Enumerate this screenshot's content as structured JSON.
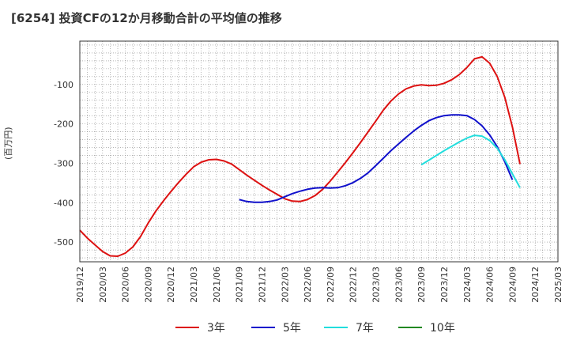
{
  "title": "[6254]  投資CFの12か月移動合計の平均値の推移",
  "unit_label": "(百万円)",
  "chart_data": {
    "type": "line",
    "x": [
      "2019/12",
      "2020/03",
      "2020/06",
      "2020/09",
      "2020/12",
      "2021/03",
      "2021/06",
      "2021/09",
      "2021/12",
      "2022/03",
      "2022/06",
      "2022/09",
      "2022/12",
      "2023/03",
      "2023/06",
      "2023/09",
      "2023/12",
      "2024/03",
      "2024/06",
      "2024/09",
      "2024/12",
      "2025/03"
    ],
    "y_ticks": [
      -500,
      -400,
      -300,
      -200,
      -100
    ],
    "ylim": [
      -550,
      10
    ],
    "grid": true,
    "legend_position": "bottom",
    "series": [
      {
        "name": "3年",
        "color": "#dd1111",
        "points": [
          [
            "2019/12",
            -470
          ],
          [
            "2020/01",
            -490
          ],
          [
            "2020/02",
            -507
          ],
          [
            "2020/03",
            -524
          ],
          [
            "2020/04",
            -535
          ],
          [
            "2020/05",
            -536
          ],
          [
            "2020/06",
            -528
          ],
          [
            "2020/07",
            -512
          ],
          [
            "2020/08",
            -486
          ],
          [
            "2020/09",
            -452
          ],
          [
            "2020/10",
            -422
          ],
          [
            "2020/11",
            -396
          ],
          [
            "2020/12",
            -372
          ],
          [
            "2021/01",
            -349
          ],
          [
            "2021/02",
            -328
          ],
          [
            "2021/03",
            -309
          ],
          [
            "2021/04",
            -297
          ],
          [
            "2021/05",
            -291
          ],
          [
            "2021/06",
            -290
          ],
          [
            "2021/07",
            -294
          ],
          [
            "2021/08",
            -302
          ],
          [
            "2021/09",
            -316
          ],
          [
            "2021/10",
            -330
          ],
          [
            "2021/11",
            -343
          ],
          [
            "2021/12",
            -356
          ],
          [
            "2022/01",
            -368
          ],
          [
            "2022/02",
            -379
          ],
          [
            "2022/03",
            -390
          ],
          [
            "2022/04",
            -396
          ],
          [
            "2022/05",
            -397
          ],
          [
            "2022/06",
            -392
          ],
          [
            "2022/07",
            -382
          ],
          [
            "2022/08",
            -366
          ],
          [
            "2022/09",
            -345
          ],
          [
            "2022/10",
            -322
          ],
          [
            "2022/11",
            -298
          ],
          [
            "2022/12",
            -273
          ],
          [
            "2023/01",
            -247
          ],
          [
            "2023/02",
            -220
          ],
          [
            "2023/03",
            -193
          ],
          [
            "2023/04",
            -165
          ],
          [
            "2023/05",
            -142
          ],
          [
            "2023/06",
            -124
          ],
          [
            "2023/07",
            -111
          ],
          [
            "2023/08",
            -104
          ],
          [
            "2023/09",
            -101
          ],
          [
            "2023/10",
            -103
          ],
          [
            "2023/11",
            -102
          ],
          [
            "2023/12",
            -97
          ],
          [
            "2024/01",
            -88
          ],
          [
            "2024/02",
            -75
          ],
          [
            "2024/03",
            -57
          ],
          [
            "2024/04",
            -35
          ],
          [
            "2024/05",
            -30
          ],
          [
            "2024/06",
            -46
          ],
          [
            "2024/07",
            -80
          ],
          [
            "2024/08",
            -133
          ],
          [
            "2024/09",
            -208
          ],
          [
            "2024/10",
            -302
          ]
        ]
      },
      {
        "name": "5年",
        "color": "#1111cc",
        "points": [
          [
            "2021/09",
            -392
          ],
          [
            "2021/10",
            -397
          ],
          [
            "2021/11",
            -399
          ],
          [
            "2021/12",
            -399
          ],
          [
            "2022/01",
            -397
          ],
          [
            "2022/02",
            -393
          ],
          [
            "2022/03",
            -385
          ],
          [
            "2022/04",
            -377
          ],
          [
            "2022/05",
            -371
          ],
          [
            "2022/06",
            -366
          ],
          [
            "2022/07",
            -363
          ],
          [
            "2022/08",
            -362
          ],
          [
            "2022/09",
            -363
          ],
          [
            "2022/10",
            -362
          ],
          [
            "2022/11",
            -357
          ],
          [
            "2022/12",
            -349
          ],
          [
            "2023/01",
            -338
          ],
          [
            "2023/02",
            -324
          ],
          [
            "2023/03",
            -306
          ],
          [
            "2023/04",
            -287
          ],
          [
            "2023/05",
            -268
          ],
          [
            "2023/06",
            -251
          ],
          [
            "2023/07",
            -234
          ],
          [
            "2023/08",
            -218
          ],
          [
            "2023/09",
            -204
          ],
          [
            "2023/10",
            -192
          ],
          [
            "2023/11",
            -184
          ],
          [
            "2023/12",
            -179
          ],
          [
            "2024/01",
            -177
          ],
          [
            "2024/02",
            -177
          ],
          [
            "2024/03",
            -179
          ],
          [
            "2024/04",
            -189
          ],
          [
            "2024/05",
            -205
          ],
          [
            "2024/06",
            -228
          ],
          [
            "2024/07",
            -258
          ],
          [
            "2024/08",
            -296
          ],
          [
            "2024/09",
            -342
          ]
        ]
      },
      {
        "name": "7年",
        "color": "#22dddd",
        "points": [
          [
            "2023/09",
            -304
          ],
          [
            "2023/10",
            -292
          ],
          [
            "2023/11",
            -280
          ],
          [
            "2023/12",
            -268
          ],
          [
            "2024/01",
            -257
          ],
          [
            "2024/02",
            -246
          ],
          [
            "2024/03",
            -236
          ],
          [
            "2024/04",
            -229
          ],
          [
            "2024/05",
            -231
          ],
          [
            "2024/06",
            -242
          ],
          [
            "2024/07",
            -262
          ],
          [
            "2024/08",
            -291
          ],
          [
            "2024/09",
            -327
          ],
          [
            "2024/10",
            -362
          ]
        ]
      },
      {
        "name": "10年",
        "color": "#228822",
        "points": []
      }
    ]
  }
}
